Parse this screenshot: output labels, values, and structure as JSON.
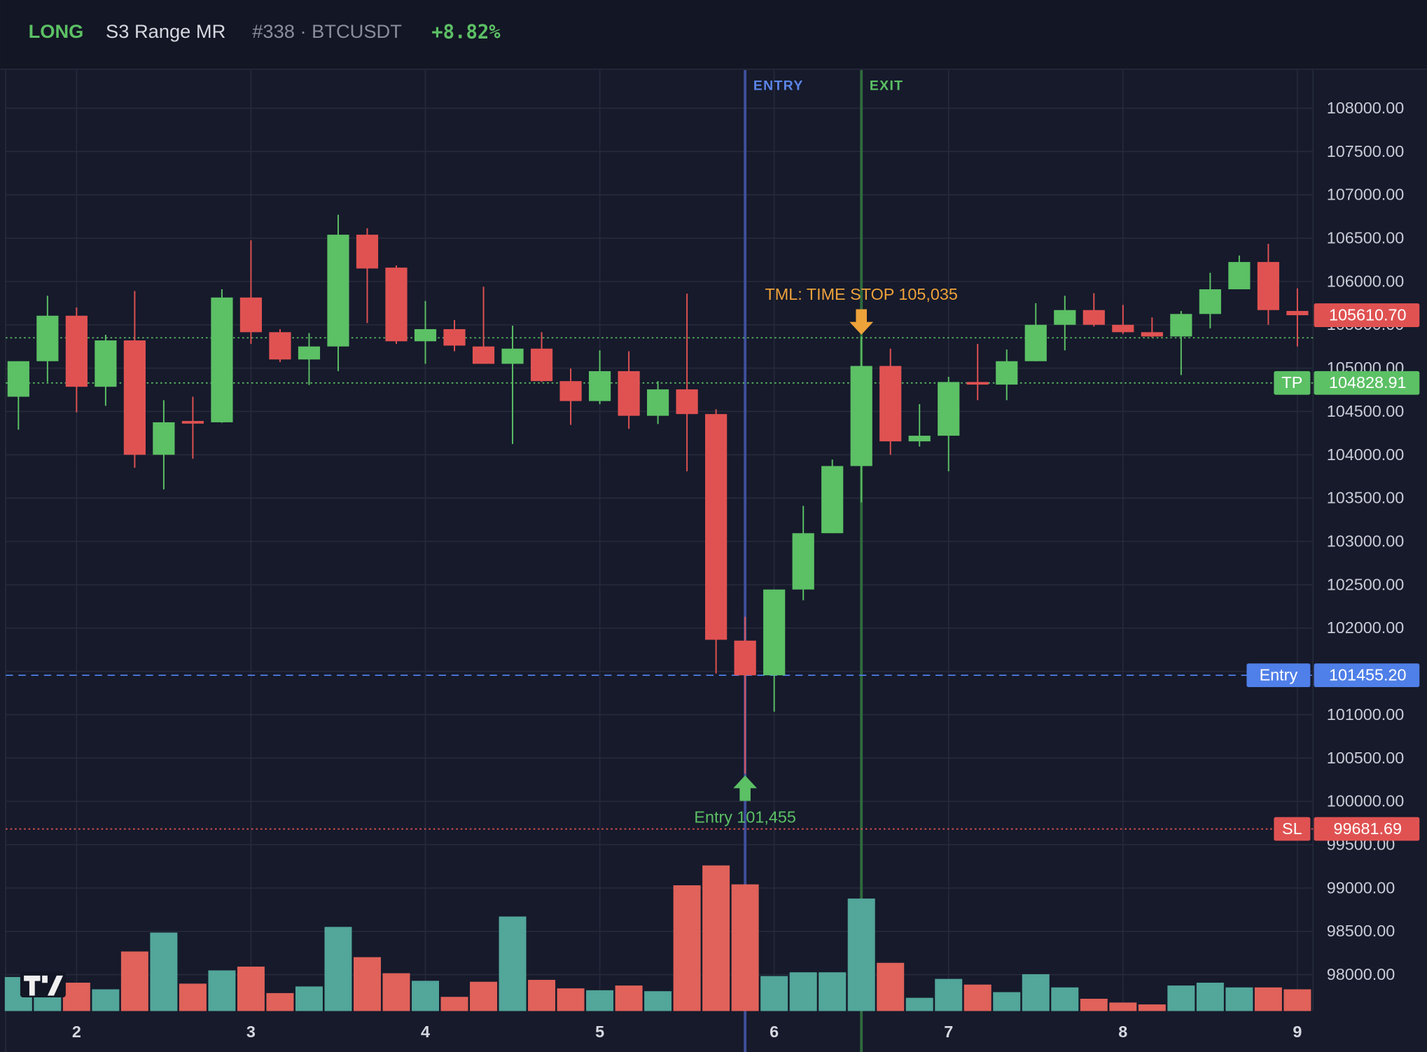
{
  "header": {
    "side": "LONG",
    "strategy": "S3 Range MR",
    "trade": "#338 · BTCUSDT",
    "pnl": "+8.82%"
  },
  "chart_data": {
    "type": "candlestick",
    "categories": [
      null,
      null,
      "2",
      null,
      null,
      null,
      null,
      null,
      "3",
      null,
      null,
      null,
      null,
      null,
      "4",
      null,
      null,
      null,
      null,
      null,
      "5",
      null,
      null,
      null,
      null,
      null,
      "6",
      null,
      null,
      null,
      null,
      null,
      "7",
      null,
      null,
      null,
      null,
      null,
      "8",
      null,
      null,
      null,
      null,
      null,
      "9"
    ],
    "open": [
      104670,
      105080,
      105605,
      104785,
      105320,
      104000,
      104390,
      104375,
      105815,
      105415,
      105100,
      105250,
      106540,
      106160,
      105310,
      105450,
      105250,
      105050,
      105225,
      104850,
      104620,
      104965,
      104450,
      104755,
      104470,
      101855,
      101455,
      102445,
      103095,
      103870,
      105025,
      104155,
      104220,
      104840,
      104810,
      105080,
      105500,
      105670,
      105500,
      105415,
      105365,
      105625,
      105910,
      106225,
      105660
    ],
    "high": [
      105080,
      105835,
      105700,
      105385,
      105890,
      104630,
      104670,
      105910,
      106475,
      105450,
      105405,
      106770,
      106615,
      106185,
      105775,
      105555,
      105940,
      105490,
      105415,
      104995,
      105205,
      105195,
      104850,
      105860,
      104525,
      102130,
      102445,
      103410,
      103945,
      105365,
      105225,
      104585,
      104900,
      105280,
      105215,
      105750,
      105835,
      105865,
      105730,
      105585,
      105660,
      106100,
      106300,
      106435,
      105920
    ],
    "low": [
      104290,
      104840,
      104490,
      104565,
      103850,
      103600,
      103955,
      104370,
      105280,
      105070,
      104805,
      104965,
      105520,
      105280,
      105050,
      105195,
      105050,
      104125,
      104840,
      104345,
      104585,
      104300,
      104355,
      103810,
      101475,
      100320,
      101035,
      102320,
      103095,
      103450,
      104000,
      104095,
      103810,
      104630,
      104630,
      105080,
      105205,
      105480,
      105395,
      105355,
      104920,
      105460,
      105910,
      105500,
      105250
    ],
    "close": [
      105080,
      105605,
      104785,
      105320,
      104000,
      104375,
      104360,
      105815,
      105415,
      105100,
      105250,
      106540,
      106150,
      105310,
      105450,
      105260,
      105050,
      105225,
      104850,
      104620,
      104965,
      104450,
      104755,
      104470,
      101865,
      101455,
      102445,
      103095,
      103870,
      105025,
      104155,
      104220,
      104840,
      104810,
      105080,
      105500,
      105670,
      105500,
      105415,
      105365,
      105625,
      105910,
      106225,
      105670,
      105610.7
    ],
    "volume": [
      36,
      30,
      30,
      23,
      63,
      83,
      29,
      43,
      47,
      19,
      26,
      89,
      57,
      40,
      32,
      15,
      31,
      100,
      33,
      24,
      22,
      27,
      21,
      133,
      154,
      134,
      37,
      41,
      41,
      119,
      51,
      14,
      34,
      28,
      20,
      39,
      25,
      13,
      9,
      7,
      27,
      30,
      25,
      25,
      23
    ],
    "up_color": "#5cc065",
    "down_color": "#e05252",
    "volume_up_color": "#52a69a",
    "volume_down_color": "#e0625a",
    "ylim": [
      97580,
      108440
    ],
    "yticks": [
      {
        "value": 98000,
        "label": "98000.00"
      },
      {
        "value": 98500,
        "label": "98500.00"
      },
      {
        "value": 99000,
        "label": "99000.00"
      },
      {
        "value": 99500,
        "label": "99500.00"
      },
      {
        "value": 100000,
        "label": "100000.00"
      },
      {
        "value": 100500,
        "label": "100500.00"
      },
      {
        "value": 101000,
        "label": "101000.00"
      },
      {
        "value": 101500,
        "label": "101500.00"
      },
      {
        "value": 102000,
        "label": "102000.00"
      },
      {
        "value": 102500,
        "label": "102500.00"
      },
      {
        "value": 103000,
        "label": "103000.00"
      },
      {
        "value": 103500,
        "label": "103500.00"
      },
      {
        "value": 104000,
        "label": "104000.00"
      },
      {
        "value": 104500,
        "label": "104500.00"
      },
      {
        "value": 105000,
        "label": "105000.00"
      },
      {
        "value": 105500,
        "label": "105500.00"
      },
      {
        "value": 106000,
        "label": "106000.00"
      },
      {
        "value": 106500,
        "label": "106500.00"
      },
      {
        "value": 107000,
        "label": "107000.00"
      },
      {
        "value": 107500,
        "label": "107500.00"
      },
      {
        "value": 108000,
        "label": "108000.00"
      }
    ],
    "grid": true,
    "price_lines": [
      {
        "name": "TP",
        "value": 104828.91,
        "value_label": "104828.91",
        "color": "#5cc065",
        "style": "dotted"
      },
      {
        "name": "Entry",
        "value": 101455.2,
        "value_label": "101455.20",
        "color": "#4f7fe8",
        "style": "dashed"
      },
      {
        "name": "SL",
        "value": 99681.69,
        "value_label": "99681.69",
        "color": "#e05252",
        "style": "dotted"
      }
    ],
    "level_lines": [
      {
        "value": 105350,
        "color": "#5cc065"
      }
    ],
    "last_price": {
      "value": 105610.7,
      "label": "105610.70",
      "color": "#e05252"
    },
    "entry": {
      "index": 25,
      "line_label": "ENTRY",
      "label": "Entry 101,455",
      "color": "#3f4f9a",
      "label_color": "#5b85e8",
      "arrow_color": "#5cc065"
    },
    "exit": {
      "index": 29,
      "line_label": "EXIT",
      "label": "TML: TIME STOP 105,035",
      "color": "#2f6a3c",
      "label_color": "#5cc065",
      "arrow_color": "#eea23a"
    }
  }
}
